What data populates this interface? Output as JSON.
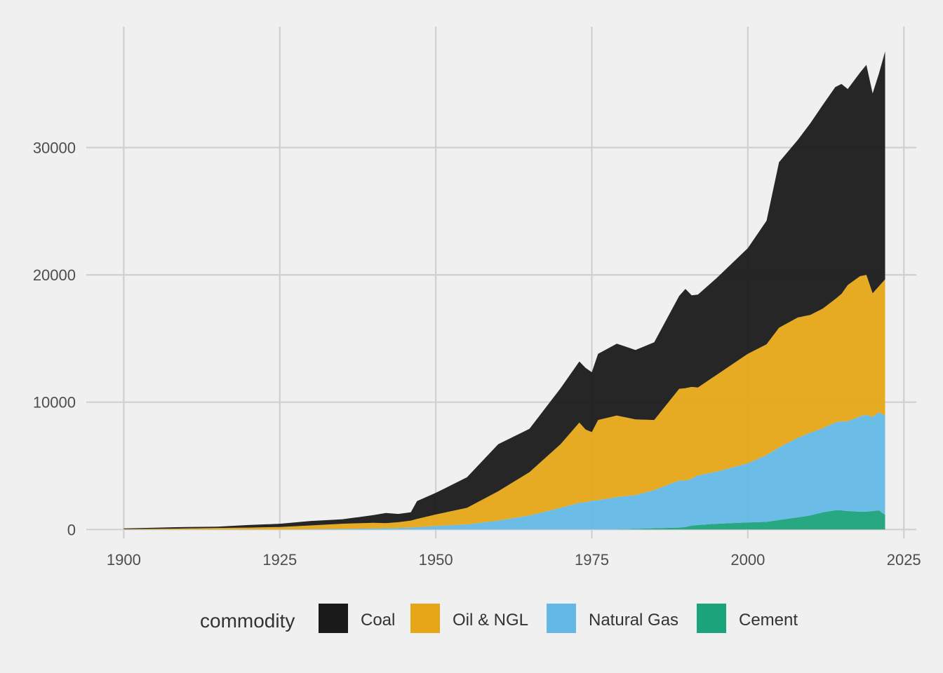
{
  "chart_data": {
    "type": "area",
    "stacked": true,
    "title": "",
    "xlabel": "",
    "ylabel": "",
    "xlim": [
      1894,
      2027
    ],
    "ylim": [
      -700,
      39500
    ],
    "x_ticks": [
      1900,
      1925,
      1950,
      1975,
      2000,
      2025
    ],
    "y_ticks": [
      0,
      10000,
      20000,
      30000
    ],
    "grid": true,
    "legend": {
      "title": "commodity",
      "position": "bottom"
    },
    "x": [
      1900,
      1905,
      1910,
      1915,
      1920,
      1925,
      1930,
      1935,
      1940,
      1942,
      1944,
      1946,
      1947,
      1950,
      1955,
      1960,
      1965,
      1970,
      1973,
      1974,
      1975,
      1976,
      1979,
      1982,
      1985,
      1989,
      1990,
      1991,
      1992,
      1995,
      2000,
      2003,
      2005,
      2008,
      2010,
      2012,
      2014,
      2015,
      2016,
      2018,
      2019,
      2020,
      2021,
      2022
    ],
    "series": [
      {
        "name": "Cement",
        "color": "#1ba37b",
        "values": [
          0,
          0,
          0,
          0,
          0,
          0,
          0,
          0,
          0,
          0,
          0,
          0,
          0,
          0,
          0,
          0,
          0,
          0,
          0,
          0,
          0,
          0,
          0,
          50,
          100,
          150,
          200,
          300,
          350,
          450,
          550,
          600,
          750,
          950,
          1100,
          1350,
          1500,
          1500,
          1450,
          1400,
          1400,
          1450,
          1500,
          1150
        ]
      },
      {
        "name": "Natural Gas",
        "color": "#63b8e6",
        "values": [
          0,
          0,
          0,
          0,
          0,
          0,
          20,
          50,
          80,
          100,
          120,
          150,
          180,
          280,
          400,
          700,
          1100,
          1700,
          2100,
          2150,
          2250,
          2300,
          2550,
          2650,
          3000,
          3700,
          3650,
          3700,
          3900,
          4100,
          4650,
          5250,
          5700,
          6250,
          6500,
          6600,
          6900,
          7000,
          7050,
          7500,
          7600,
          7400,
          7700,
          7800
        ]
      },
      {
        "name": "Oil & NGL",
        "color": "#e5a717",
        "values": [
          30,
          50,
          80,
          120,
          150,
          200,
          300,
          400,
          450,
          400,
          450,
          550,
          650,
          900,
          1300,
          2300,
          3400,
          5000,
          6300,
          5700,
          5400,
          6300,
          6400,
          5950,
          5500,
          7200,
          7250,
          7200,
          6900,
          7600,
          8600,
          8700,
          9400,
          9450,
          9250,
          9400,
          9700,
          10000,
          10700,
          11000,
          11000,
          9700,
          9900,
          10700
        ]
      },
      {
        "name": "Coal",
        "color": "#1a1a1a",
        "values": [
          60,
          90,
          120,
          100,
          200,
          250,
          350,
          350,
          600,
          800,
          650,
          650,
          1400,
          1700,
          2400,
          3700,
          3400,
          4400,
          4800,
          4850,
          4700,
          5200,
          5650,
          5450,
          6100,
          7300,
          7800,
          7200,
          7300,
          7600,
          8300,
          9700,
          13000,
          13950,
          15050,
          16000,
          16650,
          16500,
          15400,
          16000,
          16500,
          15700,
          16700,
          17900
        ]
      }
    ]
  }
}
